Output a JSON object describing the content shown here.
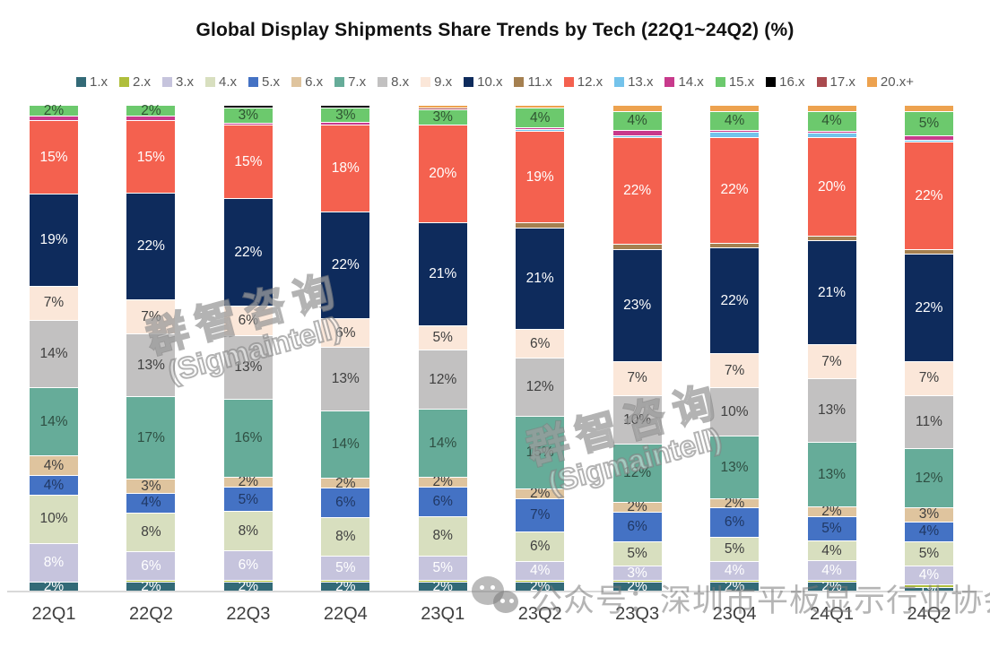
{
  "title": "Global Display Shipments Share Trends by Tech (22Q1~24Q2) (%)",
  "watermarks": {
    "brand_cn": "群智咨询",
    "brand_en": "(Sigmaintell)",
    "footer": "公众号：深圳市平板显示行业协会"
  },
  "chart_data": {
    "type": "bar",
    "stacked": true,
    "percent": true,
    "title": "Global Display Shipments Share Trends by Tech (22Q1~24Q2) (%)",
    "legend_position": "top",
    "grid": false,
    "ylim": [
      0,
      100
    ],
    "label_suffix": "%",
    "always_label_series": "1.x",
    "background": "#ffffff",
    "axis_line_color": "#d9d9d9",
    "categories": [
      "22Q1",
      "22Q2",
      "22Q3",
      "22Q4",
      "23Q1",
      "23Q2",
      "23Q3",
      "23Q4",
      "24Q1",
      "24Q2"
    ],
    "series": [
      {
        "name": "1.x",
        "color": "#336a77",
        "label_color": "#ffffff",
        "values": [
          2,
          2,
          2,
          2,
          2,
          2,
          2,
          2,
          2,
          1
        ]
      },
      {
        "name": "2.x",
        "color": "#afbe3b",
        "label_color": "#3f3f3f",
        "values": [
          0,
          0.4,
          0.4,
          0.4,
          0.4,
          0.4,
          0.4,
          0.4,
          0.4,
          0.4
        ]
      },
      {
        "name": "3.x",
        "color": "#c6c4dd",
        "label_color": "#ffffff",
        "values": [
          8,
          6,
          6,
          5,
          5,
          4,
          3,
          4,
          4,
          4
        ]
      },
      {
        "name": "4.x",
        "color": "#d8dfbf",
        "label_color": "#3f3f3f",
        "values": [
          10,
          8,
          8,
          8,
          8,
          6,
          5,
          5,
          4,
          5
        ]
      },
      {
        "name": "5.x",
        "color": "#4472c4",
        "label_color": "#203864",
        "values": [
          4,
          4,
          5,
          6,
          6,
          7,
          6,
          6,
          5,
          4
        ]
      },
      {
        "name": "6.x",
        "color": "#dfc49e",
        "label_color": "#3f3f3f",
        "values": [
          4,
          3,
          2,
          2,
          2,
          2,
          2,
          2,
          2,
          3
        ]
      },
      {
        "name": "7.x",
        "color": "#66ac99",
        "label_color": "#2f4f43",
        "values": [
          14,
          17,
          16,
          14,
          14,
          15,
          12,
          13,
          13,
          12
        ]
      },
      {
        "name": "8.x",
        "color": "#c2c1c1",
        "label_color": "#3f3f3f",
        "values": [
          14,
          13,
          13,
          13,
          12,
          12,
          10,
          10,
          13,
          11
        ]
      },
      {
        "name": "9.x",
        "color": "#fbe7d9",
        "label_color": "#3f3f3f",
        "values": [
          7,
          7,
          6,
          6,
          5,
          6,
          7,
          7,
          7,
          7
        ]
      },
      {
        "name": "10.x",
        "color": "#0e2b5c",
        "label_color": "#ffffff",
        "values": [
          19,
          22,
          22,
          22,
          21,
          21,
          23,
          22,
          21,
          22
        ]
      },
      {
        "name": "11.x",
        "color": "#a58050",
        "label_color": "#3f3f3f",
        "values": [
          0,
          0,
          0,
          0,
          0,
          1,
          1,
          1,
          1,
          1
        ]
      },
      {
        "name": "12.x",
        "color": "#f4614f",
        "label_color": "#ffffff",
        "values": [
          15,
          15,
          15,
          18,
          20,
          19,
          22,
          22,
          20,
          22
        ]
      },
      {
        "name": "13.x",
        "color": "#74c3eb",
        "label_color": "#3f3f3f",
        "values": [
          0,
          0,
          0,
          0,
          0,
          0.4,
          0.4,
          1,
          1,
          0.4
        ]
      },
      {
        "name": "14.x",
        "color": "#c83a8c",
        "label_color": "#ffffff",
        "values": [
          1,
          1,
          0.4,
          0.4,
          0,
          0.4,
          1,
          0.4,
          0.4,
          1
        ]
      },
      {
        "name": "15.x",
        "color": "#6cc96d",
        "label_color": "#2f5532",
        "values": [
          2,
          2,
          3,
          3,
          3,
          4,
          4,
          4,
          4,
          5
        ]
      },
      {
        "name": "16.x",
        "color": "#000000",
        "label_color": "#ffffff",
        "values": [
          0,
          0,
          0.4,
          0.4,
          0,
          0,
          0,
          0,
          0,
          0
        ]
      },
      {
        "name": "17.x",
        "color": "#a94a4e",
        "label_color": "#ffffff",
        "values": [
          0,
          0,
          0,
          0,
          0.4,
          0,
          0,
          0,
          0,
          0
        ]
      },
      {
        "name": "20.x+",
        "color": "#eda24f",
        "label_color": "#3f3f3f",
        "values": [
          0,
          0,
          0,
          0,
          0.4,
          0.4,
          1,
          1,
          1,
          1
        ]
      }
    ]
  }
}
